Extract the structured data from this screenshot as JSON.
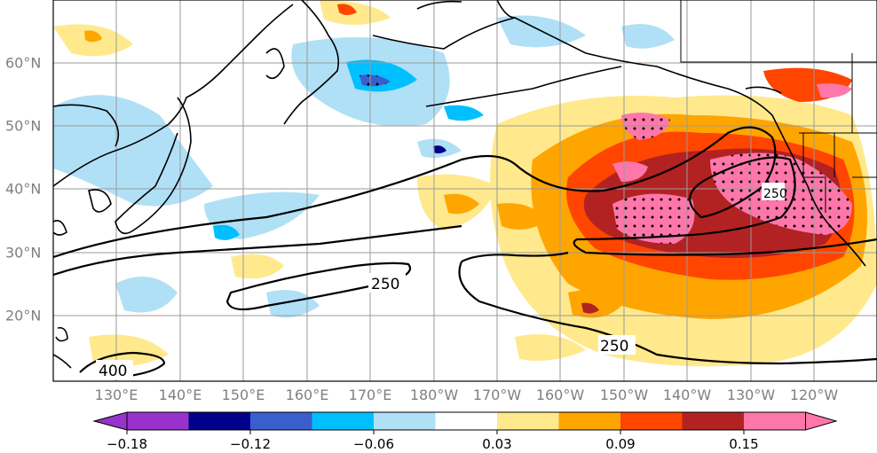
{
  "map": {
    "longitude_labels": [
      "130°E",
      "140°E",
      "150°E",
      "160°E",
      "170°E",
      "180°W",
      "170°W",
      "160°W",
      "150°W",
      "140°W",
      "130°W",
      "120°W"
    ],
    "latitude_labels": [
      "60°N",
      "50°N",
      "40°N",
      "30°N",
      "20°N"
    ],
    "contour_labels": [
      "250",
      "250",
      "400",
      "250"
    ],
    "hatching": "dotted stippling over significant regions"
  },
  "colorbar": {
    "tick_labels": [
      "−0.18",
      "−0.12",
      "−0.06",
      "0.03",
      "0.09",
      "0.15"
    ],
    "colors": [
      "#9932cc",
      "#00008b",
      "#3a5fcd",
      "#00bfff",
      "#b0e0f6",
      "#ffffff",
      "#ffe98c",
      "#ffa500",
      "#ff4500",
      "#b22222",
      "#ff77aa"
    ]
  }
}
